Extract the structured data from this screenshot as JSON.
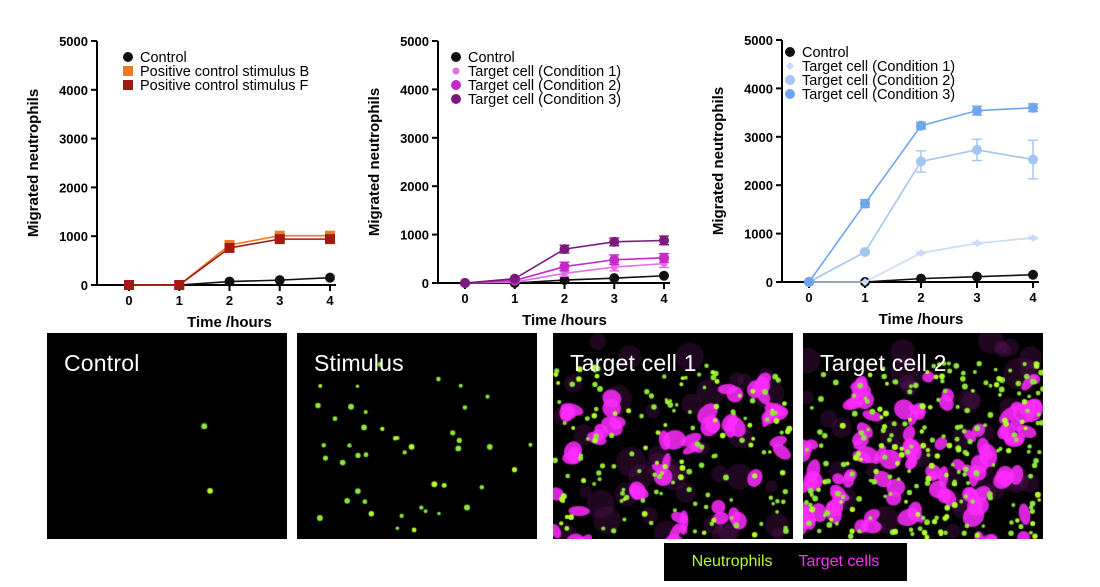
{
  "chart_data": [
    {
      "type": "line",
      "title": "",
      "xlabel": "Time /hours",
      "ylabel": "Migrated neutrophils",
      "x": [
        0,
        1,
        2,
        3,
        4
      ],
      "xlim": [
        0,
        4
      ],
      "ylim": [
        0,
        5000
      ],
      "yticks": [
        0,
        1000,
        2000,
        3000,
        4000,
        5000
      ],
      "legend_position": "top-left",
      "series": [
        {
          "name": "Control",
          "color": "#111111",
          "marker": "circle",
          "values": [
            0,
            0,
            70,
            100,
            150
          ],
          "err": [
            0,
            0,
            0,
            0,
            0
          ]
        },
        {
          "name": "Positive control stimulus B",
          "color": "#f07a24",
          "marker": "square",
          "values": [
            0,
            0,
            820,
            1010,
            1010
          ],
          "err": [
            0,
            0,
            60,
            40,
            40
          ]
        },
        {
          "name": "Positive control stimulus F",
          "color": "#a41a12",
          "marker": "square",
          "values": [
            0,
            0,
            760,
            940,
            940
          ],
          "err": [
            0,
            0,
            50,
            40,
            40
          ]
        }
      ]
    },
    {
      "type": "line",
      "title": "",
      "xlabel": "Time /hours",
      "ylabel": "Migrated neutrophils",
      "x": [
        0,
        1,
        2,
        3,
        4
      ],
      "xlim": [
        0,
        4
      ],
      "ylim": [
        0,
        5000
      ],
      "yticks": [
        0,
        1000,
        2000,
        3000,
        4000,
        5000
      ],
      "legend_position": "top-left",
      "series": [
        {
          "name": "Control",
          "color": "#111111",
          "marker": "circle",
          "values": [
            0,
            0,
            60,
            100,
            150
          ],
          "err": [
            0,
            0,
            0,
            0,
            0
          ]
        },
        {
          "name": "Target cell  (Condition 1)",
          "color": "#e66de6",
          "marker": "circle-small",
          "values": [
            0,
            20,
            200,
            330,
            400
          ],
          "err": [
            0,
            10,
            60,
            80,
            80
          ]
        },
        {
          "name": "Target cell (Condition 2)",
          "color": "#c42ac9",
          "marker": "circle",
          "values": [
            0,
            50,
            340,
            480,
            520
          ],
          "err": [
            0,
            20,
            90,
            100,
            90
          ]
        },
        {
          "name": "Target cell (Condition 3)",
          "color": "#7b1a7d",
          "marker": "circle",
          "values": [
            0,
            90,
            700,
            850,
            880
          ],
          "err": [
            0,
            20,
            80,
            80,
            90
          ]
        }
      ]
    },
    {
      "type": "line",
      "title": "",
      "xlabel": "Time /hours",
      "ylabel": "Migrated neutrophils",
      "x": [
        0,
        1,
        2,
        3,
        4
      ],
      "xlim": [
        0,
        4
      ],
      "ylim": [
        0,
        5000
      ],
      "yticks": [
        0,
        1000,
        2000,
        3000,
        4000,
        5000
      ],
      "legend_position": "top-left",
      "series": [
        {
          "name": "Control",
          "color": "#111111",
          "marker": "circle",
          "values": [
            0,
            0,
            70,
            110,
            150
          ],
          "err": [
            0,
            0,
            0,
            0,
            0
          ]
        },
        {
          "name": "Target cell (Condition 1)",
          "color": "#c8daf6",
          "marker": "diamond",
          "values": [
            0,
            0,
            600,
            800,
            910
          ],
          "err": [
            0,
            0,
            20,
            20,
            20
          ]
        },
        {
          "name": "Target cell (Condition 2)",
          "color": "#a3c5f2",
          "marker": "circle",
          "values": [
            0,
            620,
            2490,
            2730,
            2530
          ],
          "err": [
            0,
            30,
            220,
            220,
            400
          ]
        },
        {
          "name": "Target cell (Condition 3)",
          "color": "#6fa5ee",
          "marker": "circle",
          "values": [
            0,
            1620,
            3230,
            3540,
            3600
          ],
          "err": [
            0,
            80,
            70,
            90,
            80
          ]
        }
      ]
    }
  ],
  "panels": [
    {
      "label": "Control",
      "neutrophil_count": 2,
      "target_count": 0
    },
    {
      "label": "Stimulus",
      "neutrophil_count": 45,
      "target_count": 0
    },
    {
      "label": "Target cell 1",
      "neutrophil_count": 150,
      "target_count": 28
    },
    {
      "label": "Target cell 2",
      "neutrophil_count": 230,
      "target_count": 55
    }
  ],
  "legend": {
    "neutrophils": "Neutrophils",
    "target_cells": "Target cells",
    "neutrophil_color": "#b4ff2a",
    "target_color": "#ff2bff"
  }
}
